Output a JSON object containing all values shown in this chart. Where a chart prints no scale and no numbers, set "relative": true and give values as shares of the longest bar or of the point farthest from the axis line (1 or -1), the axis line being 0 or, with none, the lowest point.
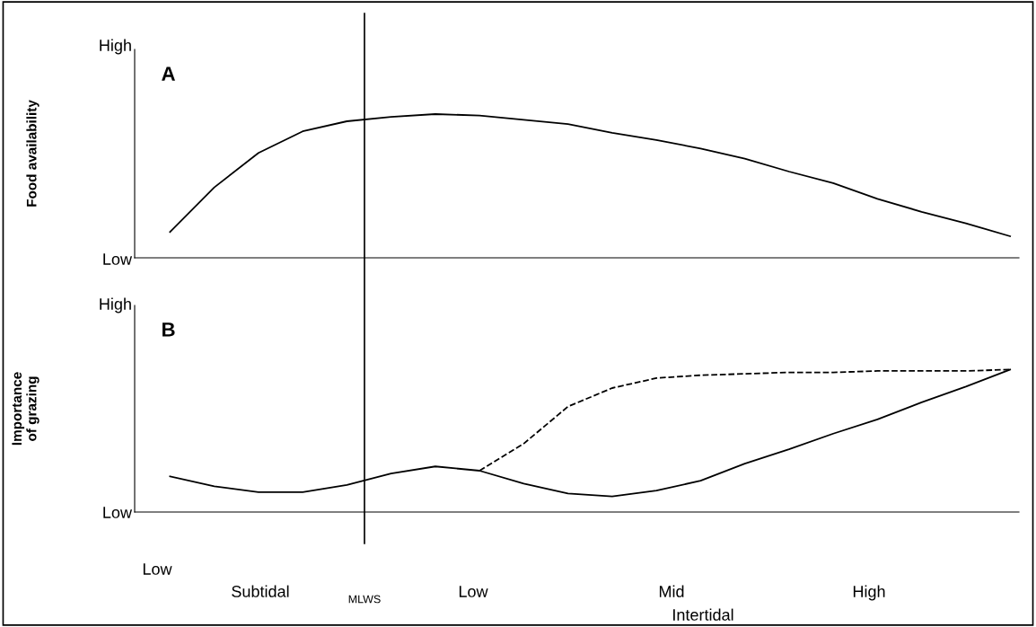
{
  "chart_data": [
    {
      "type": "line",
      "title": "A",
      "ylabel": "Food availability",
      "relative": true,
      "grid": false,
      "legend": false,
      "marker": "none",
      "categories": [
        null,
        null,
        null,
        null,
        null,
        null,
        null,
        null,
        null,
        null,
        null,
        null,
        null,
        null,
        null,
        null,
        null,
        null,
        null,
        null
      ],
      "annotations": [
        "High",
        "Low"
      ],
      "series": [
        {
          "color": "#000000",
          "line_style": "solid",
          "values": [
            0.18,
            0.49,
            0.73,
            0.88,
            0.95,
            0.98,
            1.0,
            0.99,
            0.96,
            0.93,
            0.87,
            0.82,
            0.76,
            0.69,
            0.6,
            0.52,
            0.41,
            0.32,
            0.24,
            0.15
          ]
        }
      ]
    },
    {
      "type": "line",
      "title": "B",
      "ylabel": "Importance\nof grazing",
      "xlabel": "Intertidal",
      "relative": true,
      "grid": false,
      "legend": false,
      "marker": "none",
      "categories": [
        null,
        null,
        null,
        null,
        null,
        null,
        null,
        null,
        null,
        null,
        null,
        null,
        null,
        null,
        null,
        null,
        null,
        null,
        null,
        null
      ],
      "annotations": [
        "High",
        "Low",
        "Low",
        "Subtidal",
        "Low",
        "Mid",
        "High",
        "MLWS"
      ],
      "series": [
        {
          "color": "#000000",
          "line_style": "solid",
          "values": [
            0.25,
            0.18,
            0.14,
            0.14,
            0.19,
            0.27,
            0.32,
            0.29,
            0.2,
            0.13,
            0.11,
            0.15,
            0.22,
            0.34,
            0.44,
            0.55,
            0.65,
            0.77,
            0.88,
            1.0
          ]
        },
        {
          "color": "#000000",
          "line_style": "dashed",
          "values": [
            null,
            null,
            null,
            null,
            null,
            null,
            null,
            0.29,
            0.48,
            0.74,
            0.87,
            0.94,
            0.96,
            0.97,
            0.98,
            0.98,
            0.99,
            0.99,
            0.99,
            1.0
          ]
        }
      ]
    }
  ]
}
